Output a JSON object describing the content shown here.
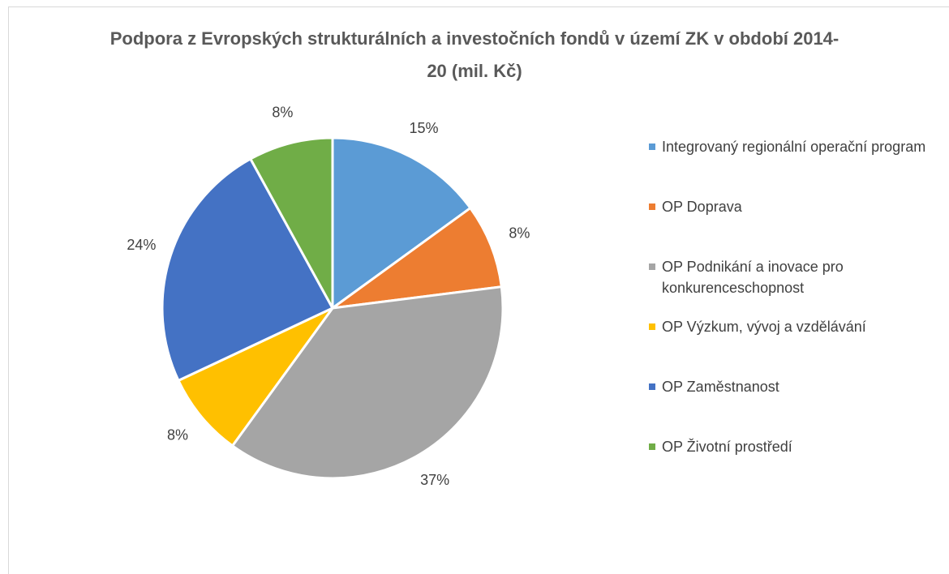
{
  "chart_data": {
    "type": "pie",
    "title": "Podpora z Evropských strukturálních a investočních fondů v území ZK v období 2014-20 (mil. Kč)",
    "categories": [
      "Integrovaný regionální operační program",
      "OP Doprava",
      "OP Podnikání a inovace pro konkurenceschopnost",
      "OP Výzkum, vývoj a vzdělávání",
      "OP Zaměstnanost",
      "OP Životní prostředí"
    ],
    "values": [
      15,
      8,
      37,
      8,
      24,
      8
    ],
    "value_labels": [
      "15%",
      "8%",
      "37%",
      "8%",
      "24%",
      "8%"
    ],
    "colors": [
      "#5b9bd5",
      "#ed7d31",
      "#a5a5a5",
      "#ffc000",
      "#4472c4",
      "#70ad47"
    ],
    "legend": "right"
  }
}
